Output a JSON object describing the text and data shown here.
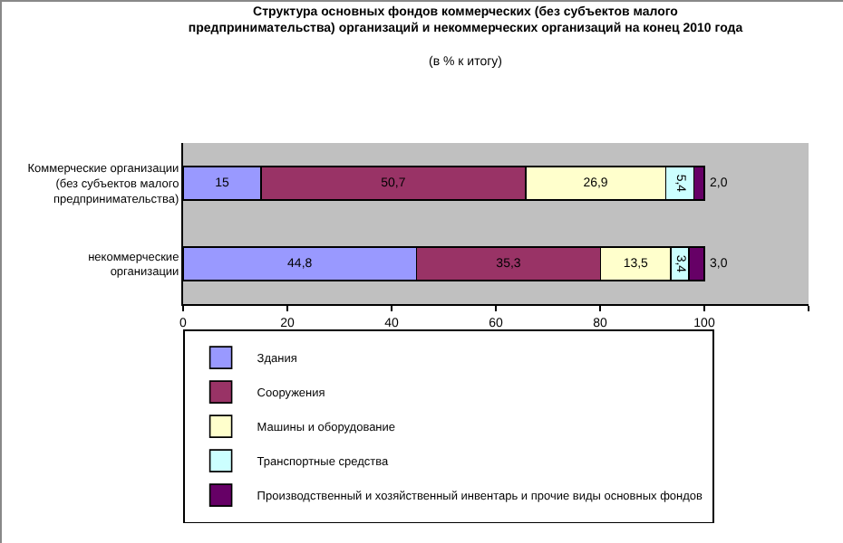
{
  "chart_data": {
    "type": "bar",
    "orientation": "horizontal",
    "stacked": true,
    "title": "Структура основных фондов коммерческих (без субъектов малого предпринимательства) организаций и некоммерческих организаций на конец 2010 года",
    "subtitle": "(в % к итогу)",
    "categories": [
      "Коммерческие организации (без субъектов малого предпринимательства)",
      "некоммерческие организации"
    ],
    "series": [
      {
        "name": "Здания",
        "color": "#9999ff",
        "values": [
          15,
          44.8
        ],
        "value_labels": [
          "15",
          "44,8"
        ]
      },
      {
        "name": "Сооружения",
        "color": "#993366",
        "values": [
          50.7,
          35.3
        ],
        "value_labels": [
          "50,7",
          "35,3"
        ]
      },
      {
        "name": "Машины и оборудование",
        "color": "#ffffcc",
        "values": [
          26.9,
          13.5
        ],
        "value_labels": [
          "26,9",
          "13,5"
        ]
      },
      {
        "name": "Транспортные средства",
        "color": "#ccffff",
        "values": [
          5.4,
          3.4
        ],
        "value_labels": [
          "5,4",
          "3,4"
        ]
      },
      {
        "name": "Производственный и хозяйственный инвентарь и прочие виды основных фондов",
        "color": "#660066",
        "values": [
          2.0,
          3.0
        ],
        "value_labels": [
          "2,0",
          "3,0"
        ]
      }
    ],
    "xlim": [
      0,
      120
    ],
    "xticks": [
      0,
      20,
      40,
      60,
      80,
      100,
      {
        "value": 120,
        "label": null
      }
    ],
    "grid": false,
    "legend": "bottom"
  }
}
